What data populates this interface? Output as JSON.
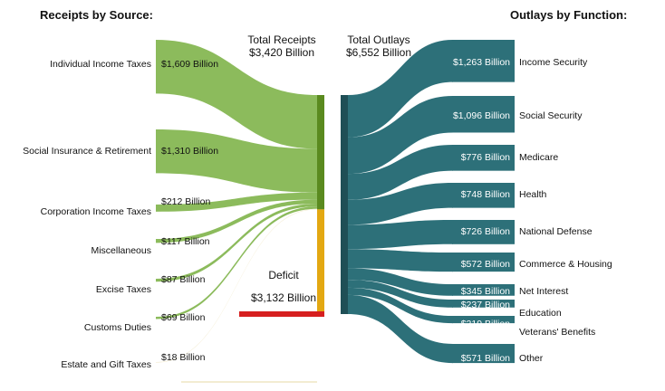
{
  "headings": {
    "receipts": "Receipts by Source:",
    "outlays": "Outlays by Function:"
  },
  "totals": {
    "receipts_label": "Total Receipts",
    "receipts_value": "$3,420 Billion",
    "outlays_label": "Total Outlays",
    "outlays_value": "$6,552 Billion"
  },
  "deficit": {
    "label": "Deficit",
    "value": "$3,132 Billion",
    "amount": 3132
  },
  "colors": {
    "receipt_flow": "#8cbb5c",
    "receipt_bar": "#5a8a1f",
    "deficit_bar": "#e3a812",
    "deficit_line": "#d61f1f",
    "outlay_flow": "#2d7079",
    "outlay_bar": "#1f4f56",
    "gift_flow": "#f3ecd2"
  },
  "chart_data": {
    "type": "sankey",
    "units": "Billion USD",
    "receipts": [
      {
        "name": "Individual Income Taxes",
        "value": 1609,
        "value_label": "$1,609 Billion"
      },
      {
        "name": "Social Insurance & Retirement",
        "value": 1310,
        "value_label": "$1,310 Billion"
      },
      {
        "name": "Corporation Income Taxes",
        "value": 212,
        "value_label": "$212 Billion"
      },
      {
        "name": "Miscellaneous",
        "value": 117,
        "value_label": "$117 Billion"
      },
      {
        "name": "Excise Taxes",
        "value": 87,
        "value_label": "$87 Billion"
      },
      {
        "name": "Customs Duties",
        "value": 69,
        "value_label": "$69 Billion"
      },
      {
        "name": "Estate and Gift Taxes",
        "value": 18,
        "value_label": "$18 Billion"
      }
    ],
    "outlays": [
      {
        "name": "Income Security",
        "value": 1263,
        "value_label": "$1,263 Billion"
      },
      {
        "name": "Social Security",
        "value": 1096,
        "value_label": "$1,096 Billion"
      },
      {
        "name": "Medicare",
        "value": 776,
        "value_label": "$776 Billion"
      },
      {
        "name": "Health",
        "value": 748,
        "value_label": "$748 Billion"
      },
      {
        "name": "National Defense",
        "value": 726,
        "value_label": "$726 Billion"
      },
      {
        "name": "Commerce & Housing",
        "value": 572,
        "value_label": "$572 Billion"
      },
      {
        "name": "Net Interest",
        "value": 345,
        "value_label": "$345 Billion"
      },
      {
        "name": "Education",
        "value": 237,
        "value_label": "$237 Billion"
      },
      {
        "name": "Veterans' Benefits",
        "value": 219,
        "value_label": "$219 Billion"
      },
      {
        "name": "Other",
        "value": 571,
        "value_label": "$571 Billion"
      }
    ]
  }
}
